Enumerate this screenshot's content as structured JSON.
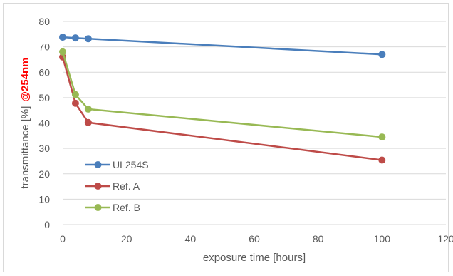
{
  "chart_data": {
    "type": "line",
    "xlabel": "exposure time [hours]",
    "ylabel": "transmittance [%]",
    "ylabel_highlight": "@254nm",
    "xlim": [
      0,
      120
    ],
    "ylim": [
      0,
      80
    ],
    "xticks": [
      0,
      20,
      40,
      60,
      80,
      100,
      120
    ],
    "yticks": [
      0,
      10,
      20,
      30,
      40,
      50,
      60,
      70,
      80
    ],
    "grid": "horizontal",
    "legend_position": "left",
    "series": [
      {
        "name": "UL254S",
        "color": "#4a7ebb",
        "x": [
          0,
          4,
          8,
          100
        ],
        "y": [
          73.8,
          73.5,
          73.2,
          67.0
        ]
      },
      {
        "name": "Ref. A",
        "color": "#be4b48",
        "x": [
          0,
          4,
          8,
          100
        ],
        "y": [
          66.0,
          47.8,
          40.2,
          25.4
        ]
      },
      {
        "name": "Ref. B",
        "color": "#98b954",
        "x": [
          0,
          4,
          8,
          100
        ],
        "y": [
          68.0,
          51.2,
          45.5,
          34.5
        ]
      }
    ]
  }
}
